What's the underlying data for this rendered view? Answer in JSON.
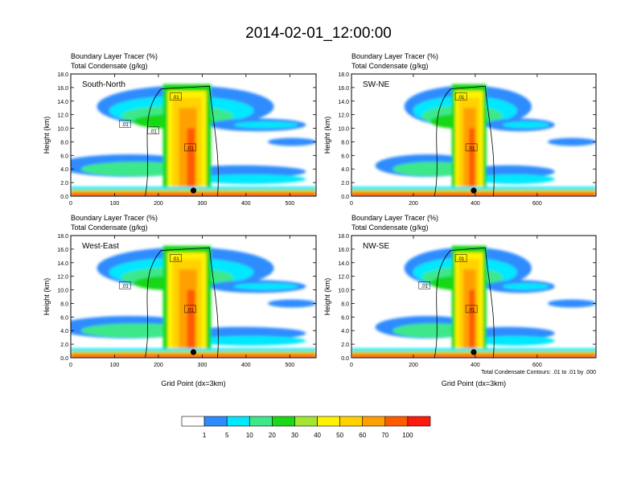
{
  "figure": {
    "title": "2014-02-01_12:00:00",
    "footnote": "Total Condensate Contours: .01 to .01 by .000"
  },
  "colorbar": {
    "colors": [
      "#ffffff",
      "#2f8cff",
      "#00e8ff",
      "#3ce88a",
      "#18d818",
      "#a2e632",
      "#fff200",
      "#ffd200",
      "#ffa000",
      "#ff5a00",
      "#ff1a10"
    ],
    "labels": [
      "1",
      "5",
      "10",
      "20",
      "30",
      "40",
      "50",
      "60",
      "70",
      "100"
    ]
  },
  "chart_data": [
    {
      "type": "heatmap",
      "panel": "South-North",
      "title_line1": "Boundary Layer Tracer   (%)",
      "title_line2": "Total Condensate   (g/kg)",
      "ylabel": "Height (km)",
      "xlabel": "",
      "xlim": [
        0,
        560
      ],
      "ylim": [
        0,
        18
      ],
      "xticks": [
        0,
        100,
        200,
        300,
        400,
        500
      ],
      "yticks": [
        "0.0",
        "2.0",
        "4.0",
        "6.0",
        "8.0",
        "10.0",
        "12.0",
        "14.0",
        "16.0",
        "18.0"
      ],
      "marker_x": 280,
      "contour_labels": [
        ".01",
        ".01",
        ".01",
        ".01"
      ]
    },
    {
      "type": "heatmap",
      "panel": "SW-NE",
      "title_line1": "Boundary Layer Tracer   (%)",
      "title_line2": "Total Condensate   (g/kg)",
      "ylabel": "Height (km)",
      "xlabel": "",
      "xlim": [
        0,
        790
      ],
      "ylim": [
        0,
        18
      ],
      "xticks": [
        0,
        200,
        400,
        600
      ],
      "yticks": [
        "0.0",
        "2.0",
        "4.0",
        "6.0",
        "8.0",
        "10.0",
        "12.0",
        "14.0",
        "16.0",
        "18.0"
      ],
      "marker_x": 395,
      "contour_labels": [
        ".01",
        ".01"
      ]
    },
    {
      "type": "heatmap",
      "panel": "West-East",
      "title_line1": "Boundary Layer Tracer   (%)",
      "title_line2": "Total Condensate   (g/kg)",
      "ylabel": "Height (km)",
      "xlabel": "Grid Point (dx=3km)",
      "xlim": [
        0,
        560
      ],
      "ylim": [
        0,
        18
      ],
      "xticks": [
        0,
        100,
        200,
        300,
        400,
        500
      ],
      "yticks": [
        "0.0",
        "2.0",
        "4.0",
        "6.0",
        "8.0",
        "10.0",
        "12.0",
        "14.0",
        "16.0",
        "18.0"
      ],
      "marker_x": 280,
      "contour_labels": [
        ".01",
        ".01",
        ".01"
      ]
    },
    {
      "type": "heatmap",
      "panel": "NW-SE",
      "title_line1": "Boundary Layer Tracer   (%)",
      "title_line2": "Total Condensate   (g/kg)",
      "ylabel": "Height (km)",
      "xlabel": "Grid Point (dx=3km)",
      "xlim": [
        0,
        790
      ],
      "ylim": [
        0,
        18
      ],
      "xticks": [
        0,
        200,
        400,
        600
      ],
      "yticks": [
        "0.0",
        "2.0",
        "4.0",
        "6.0",
        "8.0",
        "10.0",
        "12.0",
        "14.0",
        "16.0",
        "18.0"
      ],
      "marker_x": 395,
      "contour_labels": [
        ".01",
        ".01",
        ".01"
      ]
    }
  ]
}
